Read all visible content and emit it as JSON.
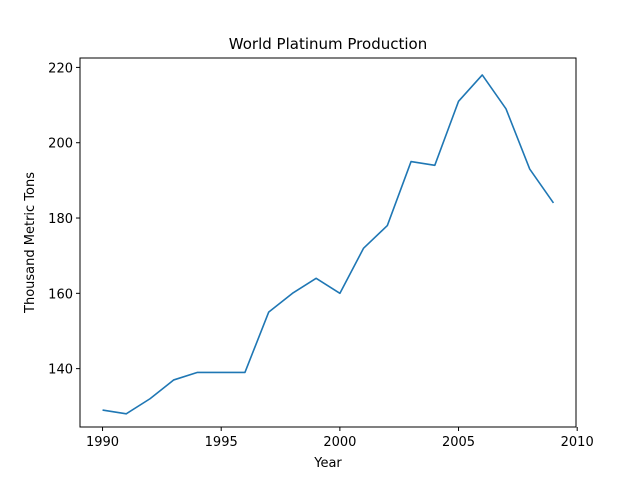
{
  "chart_data": {
    "type": "line",
    "title": "World Platinum Production",
    "xlabel": "Year",
    "ylabel": "Thousand Metric Tons",
    "xlim": [
      1989.05,
      2009.95
    ],
    "ylim": [
      124.5,
      222.5
    ],
    "xticks": [
      "1990",
      "1995",
      "2000",
      "2005",
      "2010"
    ],
    "yticks": [
      "140",
      "160",
      "180",
      "200",
      "220"
    ],
    "grid": false,
    "line_color": "#1f77b4",
    "x": [
      1990,
      1991,
      1992,
      1993,
      1994,
      1995,
      1996,
      1997,
      1998,
      1999,
      2000,
      2001,
      2002,
      2003,
      2004,
      2005,
      2006,
      2007,
      2008,
      2009
    ],
    "y": [
      129,
      128,
      132,
      137,
      139,
      139,
      139,
      155,
      160,
      164,
      160,
      172,
      178,
      195,
      194,
      211,
      218,
      209,
      193,
      184
    ]
  }
}
